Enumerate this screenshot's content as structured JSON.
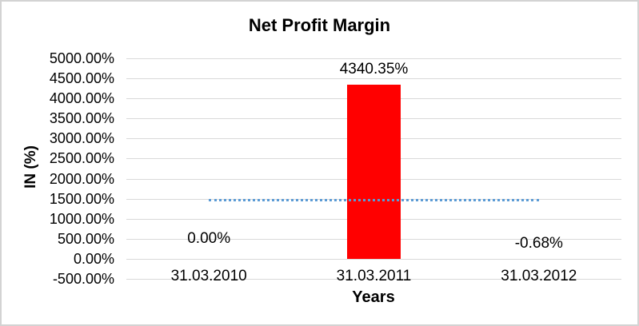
{
  "chart_data": {
    "type": "bar",
    "title": "Net Profit Margin",
    "xlabel": "Years",
    "ylabel": "IN (%)",
    "categories": [
      "31.03.2010",
      "31.03.2011",
      "31.03.2012"
    ],
    "values": [
      0.0,
      4340.35,
      -0.68
    ],
    "data_labels": [
      "0.00%",
      "4340.35%",
      "-0.68%"
    ],
    "ylim": [
      -500,
      5000
    ],
    "y_tick_step": 500,
    "y_tick_labels": [
      "5000.00%",
      "4500.00%",
      "4000.00%",
      "3500.00%",
      "3000.00%",
      "2500.00%",
      "2000.00%",
      "1500.00%",
      "1000.00%",
      "500.00%",
      "0.00%",
      "-500.00%"
    ],
    "grid": true,
    "legend": false,
    "bar_color": "#FF0000",
    "gridline_color": "#D9D9D9",
    "text_color": "#000000",
    "background": "#FFFFFF",
    "border_color": "#D3D3D3",
    "trendline": {
      "style": "dotted",
      "color": "#5B9BD5",
      "value": 1446.56
    }
  }
}
